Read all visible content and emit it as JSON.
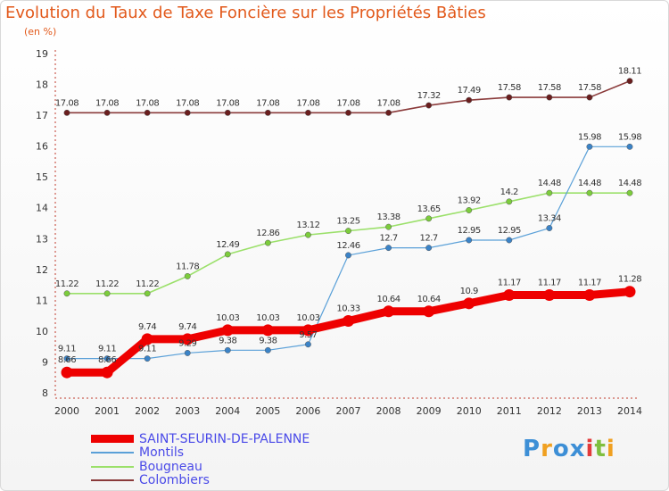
{
  "title": "Evolution du Taux de Taxe Foncière sur les Propriétés Bâties",
  "subtitle": "(en %)",
  "logo": {
    "text": [
      "P",
      "r",
      "o",
      "x",
      "i",
      "t",
      "i"
    ],
    "colors": [
      "#3d8fd6",
      "#f0a020",
      "#3d8fd6",
      "#3d8fd6",
      "#e23b3b",
      "#7fbf3f",
      "#f0a020"
    ]
  },
  "chart_data": {
    "type": "line",
    "x": [
      "2000",
      "2001",
      "2002",
      "2003",
      "2004",
      "2005",
      "2006",
      "2007",
      "2008",
      "2009",
      "2010",
      "2011",
      "2012",
      "2013",
      "2014"
    ],
    "ylim": [
      8,
      19
    ],
    "yticks": [
      "8",
      "9",
      "10",
      "11",
      "12",
      "13",
      "14",
      "15",
      "16",
      "17",
      "18",
      "19"
    ],
    "grid": false,
    "legend_position": "bottom-left",
    "series": [
      {
        "name": "SAINT-SEURIN-DE-PALENNE",
        "color": "#ee0000",
        "marker": "#ee0000",
        "width": 9,
        "values": [
          8.66,
          8.66,
          9.74,
          9.74,
          10.03,
          10.03,
          10.03,
          10.33,
          10.64,
          10.64,
          10.9,
          11.17,
          11.17,
          11.17,
          11.28
        ],
        "labels": [
          "8.66",
          "8.66",
          "9.74",
          "9.74",
          "10.03",
          "10.03",
          "10.03",
          "10.33",
          "10.64",
          "10.64",
          "10.9",
          "11.17",
          "11.17",
          "11.17",
          "11.28"
        ]
      },
      {
        "name": "Montils",
        "color": "#5aa0d8",
        "marker": "#3b83c7",
        "width": 1.2,
        "values": [
          9.11,
          9.11,
          9.11,
          9.29,
          9.38,
          9.38,
          9.57,
          12.46,
          12.7,
          12.7,
          12.95,
          12.95,
          13.34,
          15.98,
          15.98
        ],
        "labels": [
          "9.11",
          "9.11",
          "9.11",
          "9.29",
          "9.38",
          "9.38",
          "9.57",
          "12.46",
          "12.7",
          "12.7",
          "12.95",
          "12.95",
          "13.34",
          "15.98",
          "15.98"
        ]
      },
      {
        "name": "Bougneau",
        "color": "#9be06a",
        "marker": "#7ccc3c",
        "width": 1.6,
        "values": [
          11.22,
          11.22,
          11.22,
          11.78,
          12.49,
          12.86,
          13.12,
          13.25,
          13.38,
          13.65,
          13.92,
          14.2,
          14.48,
          14.48,
          14.48
        ],
        "labels": [
          "11.22",
          "11.22",
          "11.22",
          "11.78",
          "12.49",
          "12.86",
          "13.12",
          "13.25",
          "13.38",
          "13.65",
          "13.92",
          "14.2",
          "14.48",
          "14.48",
          "14.48"
        ]
      },
      {
        "name": "Colombiers",
        "color": "#8a3a3a",
        "marker": "#6a1e1e",
        "width": 1.6,
        "values": [
          17.08,
          17.08,
          17.08,
          17.08,
          17.08,
          17.08,
          17.08,
          17.08,
          17.08,
          17.32,
          17.49,
          17.58,
          17.58,
          17.58,
          18.11
        ],
        "labels": [
          "17.08",
          "17.08",
          "17.08",
          "17.08",
          "17.08",
          "17.08",
          "17.08",
          "17.08",
          "17.08",
          "17.32",
          "17.49",
          "17.58",
          "17.58",
          "17.58",
          "18.11"
        ]
      }
    ]
  }
}
